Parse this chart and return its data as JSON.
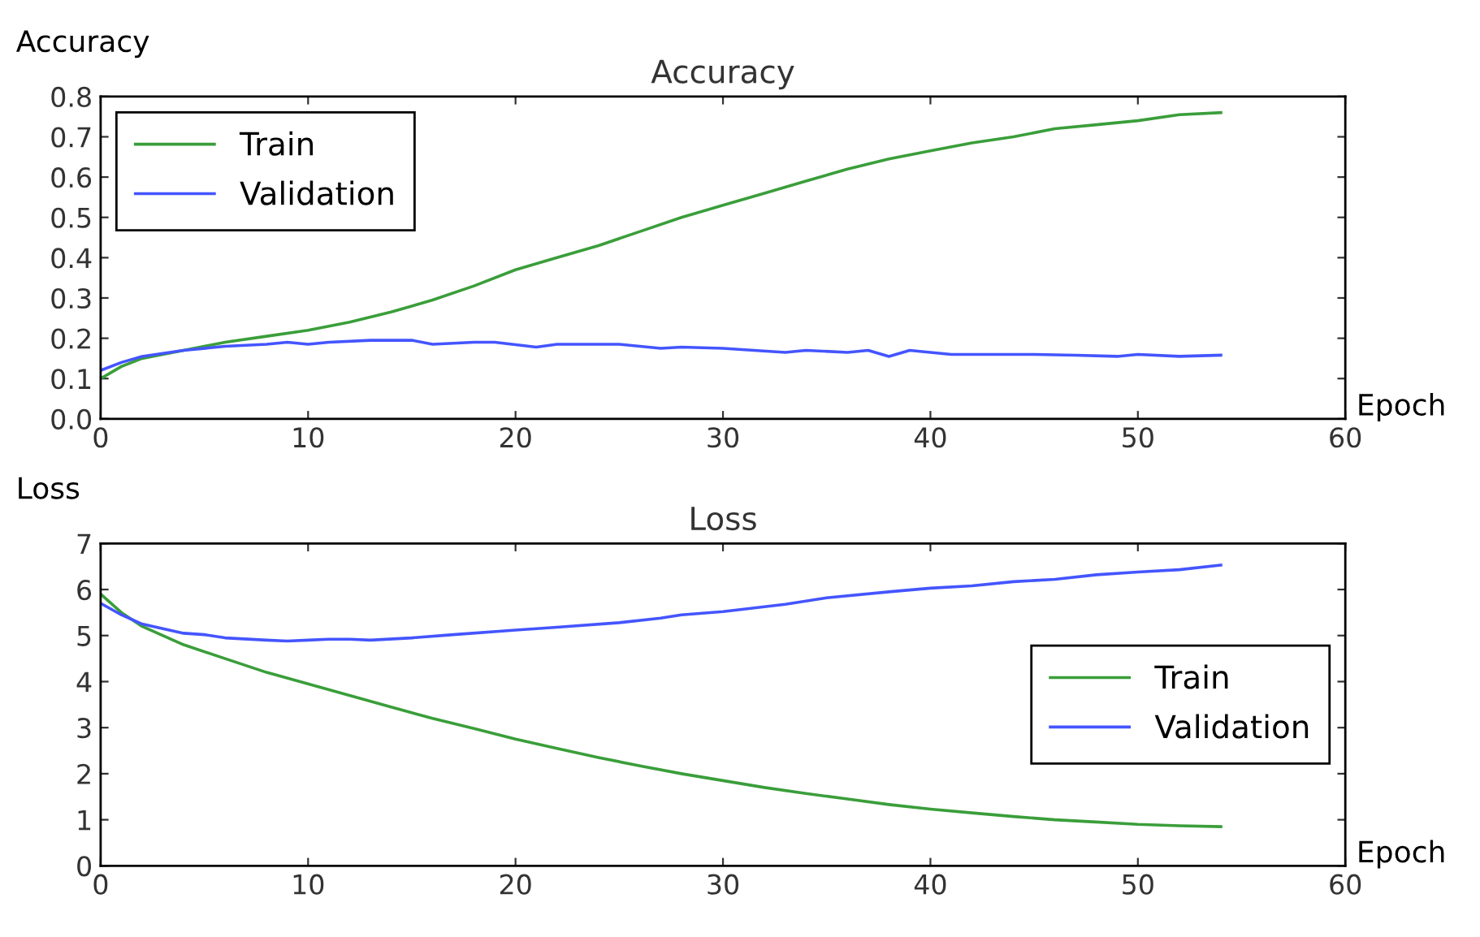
{
  "chart_data": [
    {
      "type": "line",
      "title": "Accuracy",
      "xlabel": "Epoch",
      "ylabel": "Accuracy",
      "xlim": [
        0,
        60
      ],
      "xticks": [
        0,
        10,
        20,
        30,
        40,
        50,
        60
      ],
      "ylim": [
        0,
        0.8
      ],
      "yticks": [
        {
          "value": 0,
          "label": "0.0"
        },
        0.1,
        0.2,
        0.3,
        0.4,
        0.5,
        0.6,
        0.7,
        0.8
      ],
      "grid": false,
      "legend": "top left",
      "marker": "none",
      "line_style": "solid",
      "series": [
        {
          "name": "Train",
          "color": "#3a9e3a",
          "x": [
            0,
            1,
            2,
            4,
            6,
            8,
            10,
            12,
            14,
            16,
            18,
            20,
            22,
            24,
            26,
            28,
            30,
            32,
            34,
            36,
            38,
            40,
            42,
            44,
            46,
            48,
            50,
            52,
            54
          ],
          "values": [
            0.1,
            0.13,
            0.15,
            0.17,
            0.19,
            0.205,
            0.22,
            0.24,
            0.265,
            0.295,
            0.33,
            0.37,
            0.4,
            0.43,
            0.465,
            0.5,
            0.53,
            0.56,
            0.59,
            0.62,
            0.645,
            0.665,
            0.685,
            0.7,
            0.72,
            0.73,
            0.74,
            0.755,
            0.76
          ]
        },
        {
          "name": "Validation",
          "color": "#4455ff",
          "x": [
            0,
            1,
            2,
            4,
            6,
            8,
            9,
            10,
            11,
            13,
            15,
            16,
            18,
            19,
            21,
            22,
            25,
            27,
            28,
            30,
            33,
            34,
            36,
            37,
            38,
            39,
            41,
            43,
            45,
            47,
            49,
            50,
            52,
            54
          ],
          "values": [
            0.12,
            0.14,
            0.155,
            0.17,
            0.18,
            0.185,
            0.19,
            0.185,
            0.19,
            0.195,
            0.195,
            0.185,
            0.19,
            0.19,
            0.178,
            0.185,
            0.185,
            0.175,
            0.178,
            0.175,
            0.165,
            0.17,
            0.165,
            0.17,
            0.155,
            0.17,
            0.16,
            0.16,
            0.16,
            0.158,
            0.155,
            0.16,
            0.155,
            0.158
          ]
        }
      ]
    },
    {
      "type": "line",
      "title": "Loss",
      "xlabel": "Epoch",
      "ylabel": "Loss",
      "xlim": [
        0,
        60
      ],
      "xticks": [
        0,
        10,
        20,
        30,
        40,
        50,
        60
      ],
      "ylim": [
        0,
        7
      ],
      "yticks": [
        0,
        1,
        2,
        3,
        4,
        5,
        6,
        7
      ],
      "grid": false,
      "legend": "right",
      "marker": "none",
      "line_style": "solid",
      "series": [
        {
          "name": "Train",
          "color": "#3a9e3a",
          "x": [
            0,
            1,
            2,
            4,
            6,
            8,
            10,
            12,
            14,
            16,
            18,
            20,
            22,
            24,
            26,
            28,
            30,
            32,
            34,
            36,
            38,
            40,
            42,
            44,
            46,
            48,
            50,
            52,
            54
          ],
          "values": [
            5.9,
            5.5,
            5.2,
            4.8,
            4.5,
            4.2,
            3.95,
            3.7,
            3.45,
            3.2,
            2.98,
            2.75,
            2.55,
            2.35,
            2.17,
            2.0,
            1.85,
            1.7,
            1.57,
            1.45,
            1.33,
            1.23,
            1.15,
            1.07,
            1.0,
            0.95,
            0.9,
            0.87,
            0.85
          ]
        },
        {
          "name": "Validation",
          "color": "#4455ff",
          "x": [
            0,
            1,
            2,
            3,
            4,
            5,
            6,
            8,
            9,
            10,
            11,
            12,
            13,
            15,
            17,
            20,
            22,
            25,
            27,
            28,
            30,
            33,
            35,
            38,
            40,
            42,
            44,
            46,
            48,
            50,
            52,
            54
          ],
          "values": [
            5.7,
            5.45,
            5.25,
            5.15,
            5.05,
            5.02,
            4.95,
            4.9,
            4.88,
            4.9,
            4.92,
            4.92,
            4.9,
            4.95,
            5.02,
            5.12,
            5.18,
            5.28,
            5.38,
            5.45,
            5.52,
            5.68,
            5.82,
            5.95,
            6.03,
            6.08,
            6.17,
            6.22,
            6.32,
            6.38,
            6.43,
            6.53
          ]
        }
      ]
    }
  ]
}
